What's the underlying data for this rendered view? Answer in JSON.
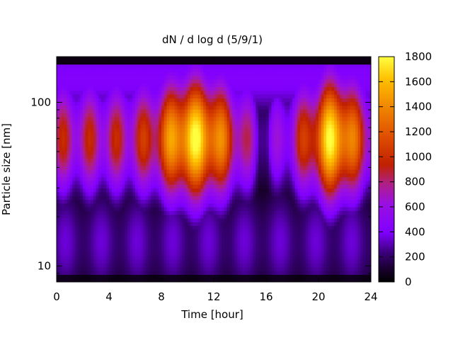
{
  "chart_data": {
    "type": "heatmap",
    "title": "dN / d log d (5/9/1)",
    "xlabel": "Time [hour]",
    "ylabel": "Particle size [nm]",
    "x_range": [
      0,
      24
    ],
    "x_ticks": [
      "0",
      "4",
      "8",
      "12",
      "16",
      "20",
      "24"
    ],
    "y_scale": "log",
    "y_range": [
      8,
      190
    ],
    "y_ticks": [
      "10",
      "100"
    ],
    "colorbar": {
      "range": [
        0,
        1800
      ],
      "ticks": [
        "0",
        "200",
        "400",
        "600",
        "800",
        "1000",
        "1200",
        "1400",
        "1600",
        "1800"
      ],
      "colormap": [
        "#000000",
        "#3a007a",
        "#8000ff",
        "#a020c0",
        "#c02000",
        "#e06000",
        "#ffa000",
        "#ffe020",
        "#ffff60"
      ]
    },
    "features": {
      "background_level": 0,
      "low_size_band_nm": [
        10,
        25
      ],
      "low_size_band_level": 350,
      "peak_size_nm": 60,
      "peak_level_estimate": 1750,
      "high_activity_hours": [
        [
          7.5,
          13.8
        ],
        [
          19,
          23
        ]
      ],
      "dip_hours": [
        [
          14,
          18.5
        ]
      ],
      "top_dark_band_nm": [
        170,
        190
      ]
    }
  }
}
